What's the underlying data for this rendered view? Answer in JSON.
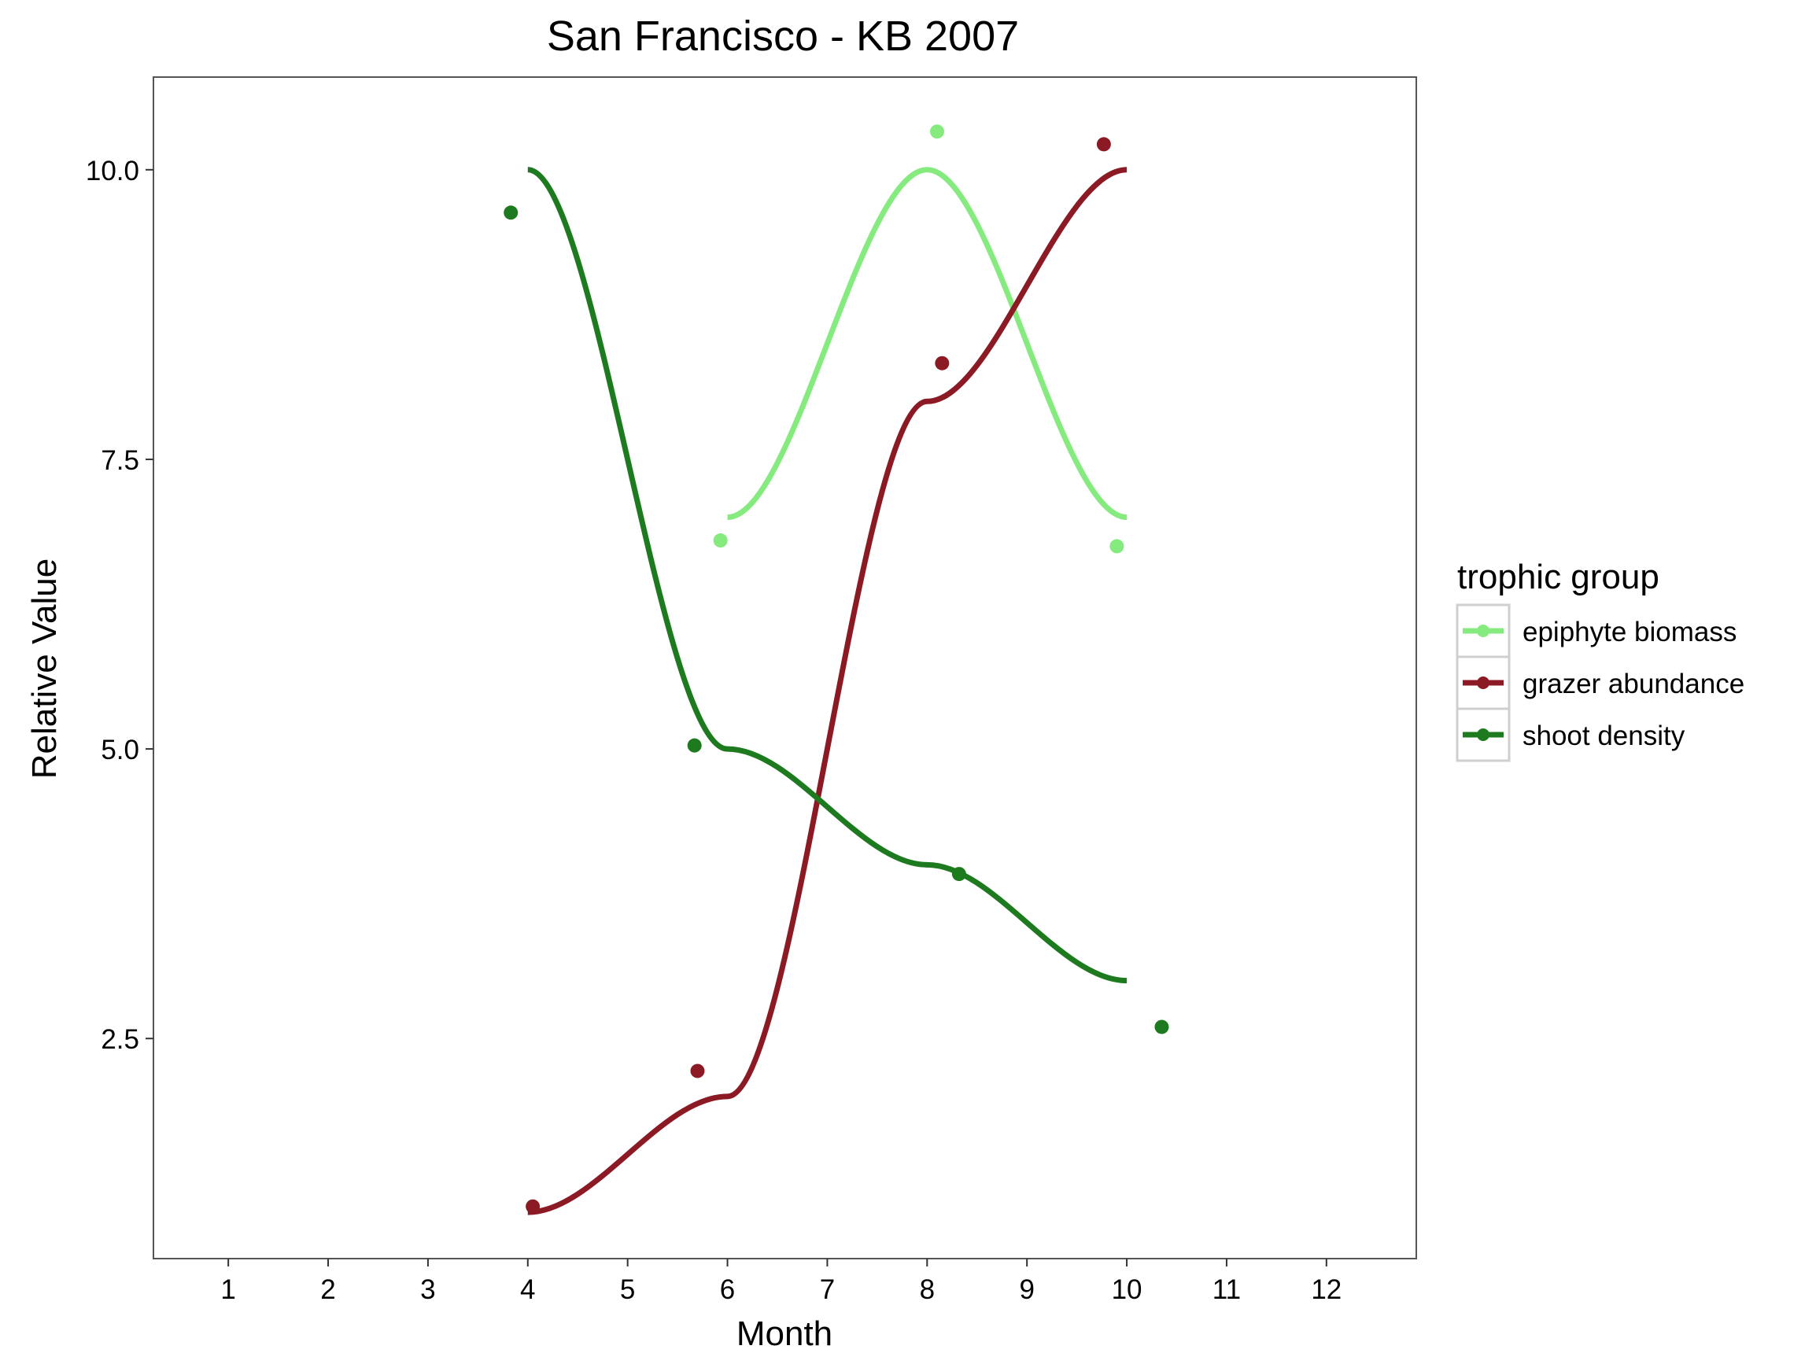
{
  "chart_data": {
    "type": "line",
    "title": "San Francisco - KB 2007",
    "xlabel": "Month",
    "ylabel": "Relative Value",
    "x_ticks": [
      1,
      2,
      3,
      4,
      5,
      6,
      7,
      8,
      9,
      10,
      11,
      12
    ],
    "y_ticks": [
      2.5,
      5.0,
      7.5,
      10.0
    ],
    "xlim": [
      0.25,
      12.9
    ],
    "ylim": [
      0.6,
      10.8
    ],
    "grid": false,
    "legend": {
      "title": "trophic group",
      "position": "right"
    },
    "series": [
      {
        "name": "epiphyte biomass",
        "color": "#86EB7F",
        "line": {
          "x": [
            6,
            8,
            10
          ],
          "y": [
            7.0,
            10.0,
            7.0
          ]
        },
        "points": {
          "x": [
            5.93,
            8.1,
            9.9
          ],
          "y": [
            6.8,
            10.33,
            6.75
          ]
        }
      },
      {
        "name": "grazer abundance",
        "color": "#8B1A24",
        "line": {
          "x": [
            4,
            6,
            8,
            10
          ],
          "y": [
            1.0,
            2.0,
            8.0,
            10.0
          ]
        },
        "points": {
          "x": [
            4.05,
            5.7,
            8.15,
            9.77
          ],
          "y": [
            1.05,
            2.22,
            8.33,
            10.22
          ]
        }
      },
      {
        "name": "shoot density",
        "color": "#1E7A1E",
        "line": {
          "x": [
            4,
            6,
            8,
            10
          ],
          "y": [
            10.0,
            5.0,
            4.0,
            3.0
          ]
        },
        "points": {
          "x": [
            3.83,
            5.67,
            8.32,
            10.35
          ],
          "y": [
            9.63,
            5.03,
            3.92,
            2.6
          ]
        }
      }
    ]
  }
}
